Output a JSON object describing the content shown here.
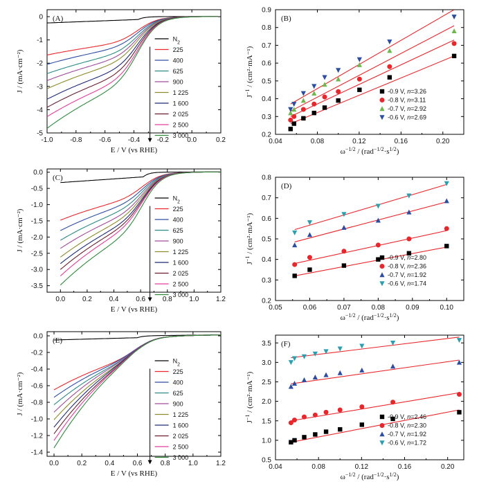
{
  "chart_data": [
    {
      "panel": "(A)",
      "type": "line",
      "xlabel": "E / V (vs RHE)",
      "ylabel": "J / (mA·cm⁻²)",
      "xlim": [
        -1.0,
        0.2
      ],
      "ylim": [
        -5,
        0.3
      ],
      "xticks": [
        -1.0,
        -0.8,
        -0.6,
        -0.4,
        -0.2,
        0.0,
        0.2
      ],
      "xtick_labels": [
        "-1.0",
        "-0.8",
        "-0.6",
        "-0.4",
        "-0.2",
        "0.0",
        "0.2"
      ],
      "yticks": [
        0,
        -1,
        -2,
        -3,
        -4,
        -5
      ],
      "ytick_labels": [
        "0",
        "-1",
        "-2",
        "-3",
        "-4",
        "-5"
      ],
      "onset": -0.37,
      "curve_end": 0.18,
      "legend": {
        "placement": "right",
        "arrow": "down"
      },
      "series": [
        {
          "name": "N₂",
          "color": "#000000",
          "n2": true,
          "start": -0.27
        },
        {
          "name": "225",
          "color": "#e8262b",
          "start": -1.65,
          "plateau": -1.15
        },
        {
          "name": "400",
          "color": "#2c4ea2",
          "start": -2.05,
          "plateau": -1.35
        },
        {
          "name": "625",
          "color": "#2a8a84",
          "start": -2.45,
          "plateau": -1.6
        },
        {
          "name": "900",
          "color": "#a04a9c",
          "start": -2.75,
          "plateau": -1.8
        },
        {
          "name": "1 225",
          "color": "#8c8c2a",
          "start": -3.1,
          "plateau": -2.0
        },
        {
          "name": "1 600",
          "color": "#1e2b78",
          "start": -3.55,
          "plateau": -2.3
        },
        {
          "name": "2 025",
          "color": "#6a1d2e",
          "start": -3.9,
          "plateau": -2.55
        },
        {
          "name": "2 500",
          "color": "#e23c9a",
          "start": -4.3,
          "plateau": -2.8
        },
        {
          "name": "3 000",
          "color": "#2e8b3a",
          "start": -4.8,
          "plateau": -3.0
        }
      ]
    },
    {
      "panel": "(B)",
      "type": "scatter",
      "xlabel": "ω^−1/2 / (rad^−1/2·s^1/2)",
      "ylabel": "J^−1 / (cm²·mA⁻¹)",
      "xlim": [
        0.04,
        0.22
      ],
      "ylim": [
        0.2,
        0.9
      ],
      "xticks": [
        0.04,
        0.08,
        0.12,
        0.16,
        0.2
      ],
      "xtick_labels": [
        "0.04",
        "0.08",
        "0.12",
        "0.16",
        "0.20"
      ],
      "yticks": [
        0.2,
        0.3,
        0.4,
        0.5,
        0.6,
        0.7,
        0.8,
        0.9
      ],
      "ytick_labels": [
        "0.2",
        "0.3",
        "0.4",
        "0.5",
        "0.6",
        "0.7",
        "0.8",
        "0.9"
      ],
      "fit_color": "#e8262b",
      "legend": {
        "placement": "bottom-right"
      },
      "x": [
        0.0544,
        0.0577,
        0.0667,
        0.0769,
        0.087,
        0.1,
        0.1203,
        0.1491,
        0.2108
      ],
      "series": [
        {
          "name": "-0.9 V, n=3.26",
          "marker": "square",
          "color": "#000000",
          "values": [
            0.23,
            0.26,
            0.29,
            0.32,
            0.35,
            0.39,
            0.45,
            0.52,
            0.64
          ],
          "fit": [
            0.0544,
            0.26,
            0.2108,
            0.64
          ]
        },
        {
          "name": "-0.8 V, n=3.11",
          "marker": "circle",
          "color": "#e8262b",
          "values": [
            0.28,
            0.3,
            0.34,
            0.37,
            0.41,
            0.44,
            0.51,
            0.58,
            0.71
          ],
          "fit": [
            0.0544,
            0.3,
            0.2108,
            0.73
          ]
        },
        {
          "name": "-0.7 V, n=2.92",
          "marker": "triangle-up",
          "color": "#6fb84f",
          "values": [
            0.32,
            0.34,
            0.39,
            0.43,
            0.48,
            0.51,
            0.59,
            0.67,
            0.78
          ],
          "fit": [
            0.0544,
            0.33,
            0.2108,
            0.81
          ]
        },
        {
          "name": "-0.6 V, n=2.69",
          "marker": "triangle-down",
          "color": "#2c4ea2",
          "values": [
            0.34,
            0.37,
            0.43,
            0.47,
            0.52,
            0.56,
            0.62,
            0.72,
            0.86
          ],
          "fit": [
            0.0544,
            0.37,
            0.2108,
            0.9
          ]
        }
      ]
    },
    {
      "panel": "(C)",
      "type": "line",
      "xlabel": "E / V (vs RHE)",
      "ylabel": "J / (mA·cm⁻²)",
      "xlim": [
        -0.1,
        1.2
      ],
      "ylim": [
        -3.7,
        0.1
      ],
      "xticks": [
        0.0,
        0.2,
        0.4,
        0.6,
        0.8,
        1.0,
        1.2
      ],
      "xtick_labels": [
        "0.0",
        "0.2",
        "0.4",
        "0.6",
        "0.8",
        "1.0",
        "1.2"
      ],
      "yticks": [
        0.0,
        -0.5,
        -1.0,
        -1.5,
        -2.0,
        -2.5,
        -3.0,
        -3.5
      ],
      "ytick_labels": [
        "0.0",
        "-0.5",
        "-1.0",
        "-1.5",
        "-2.0",
        "-2.5",
        "-3.0",
        "-3.5"
      ],
      "onset": 0.62,
      "curve_start": 0.0,
      "curve_end": 1.2,
      "legend": {
        "placement": "right",
        "arrow": "down"
      },
      "series": [
        {
          "name": "N₂",
          "color": "#000000",
          "n2": true,
          "start": -0.32
        },
        {
          "name": "225",
          "color": "#e8262b",
          "start": -1.48,
          "plateau": -0.85
        },
        {
          "name": "400",
          "color": "#2c4ea2",
          "start": -1.8,
          "plateau": -1.0
        },
        {
          "name": "625",
          "color": "#2a8a84",
          "start": -2.1,
          "plateau": -1.15
        },
        {
          "name": "900",
          "color": "#a04a9c",
          "start": -2.35,
          "plateau": -1.3
        },
        {
          "name": "1 225",
          "color": "#8c8c2a",
          "start": -2.62,
          "plateau": -1.42
        },
        {
          "name": "1 600",
          "color": "#1e2b78",
          "start": -2.82,
          "plateau": -1.55
        },
        {
          "name": "2 025",
          "color": "#6a1d2e",
          "start": -3.0,
          "plateau": -1.65
        },
        {
          "name": "2 500",
          "color": "#e23c9a",
          "start": -3.2,
          "plateau": -1.75
        },
        {
          "name": "3 000",
          "color": "#2e8b3a",
          "start": -3.48,
          "plateau": -1.95
        }
      ]
    },
    {
      "panel": "(D)",
      "type": "scatter",
      "xlabel": "ω^−1/2 / (rad^−1/2·s^1/2)",
      "ylabel": "J^−1 / (cm²·mA⁻¹)",
      "xlim": [
        0.05,
        0.105
      ],
      "ylim": [
        0.2,
        0.8
      ],
      "xticks": [
        0.05,
        0.06,
        0.07,
        0.08,
        0.09,
        0.1
      ],
      "xtick_labels": [
        "0.05",
        "0.06",
        "0.07",
        "0.08",
        "0.09",
        "0.10"
      ],
      "yticks": [
        0.2,
        0.3,
        0.4,
        0.5,
        0.6,
        0.7,
        0.8
      ],
      "ytick_labels": [
        "0.2",
        "0.3",
        "0.4",
        "0.5",
        "0.6",
        "0.7",
        "0.8"
      ],
      "fit_color": "#e8262b",
      "legend": {
        "placement": "bottom-right"
      },
      "x": [
        0.0556,
        0.06,
        0.07,
        0.08,
        0.089,
        0.1
      ],
      "series": [
        {
          "name": "-0.9 V, n=2.80",
          "marker": "square",
          "color": "#000000",
          "values": [
            0.32,
            0.35,
            0.37,
            0.4,
            0.43,
            0.465
          ],
          "fit": [
            0.0556,
            0.32,
            0.1,
            0.46
          ]
        },
        {
          "name": "-0.8 V, n=2.36",
          "marker": "circle",
          "color": "#e8262b",
          "values": [
            0.375,
            0.41,
            0.44,
            0.47,
            0.5,
            0.55
          ],
          "fit": [
            0.0556,
            0.38,
            0.1,
            0.54
          ]
        },
        {
          "name": "-0.7 V, n=1.92",
          "marker": "triangle-up",
          "color": "#2c4ea2",
          "values": [
            0.47,
            0.52,
            0.555,
            0.59,
            0.63,
            0.685
          ],
          "fit": [
            0.0556,
            0.485,
            0.1,
            0.68
          ]
        },
        {
          "name": "-0.6 V, n=1.74",
          "marker": "triangle-down",
          "color": "#2a9fb0",
          "values": [
            0.53,
            0.58,
            0.62,
            0.66,
            0.71,
            0.77
          ],
          "fit": [
            0.0556,
            0.545,
            0.1,
            0.765
          ]
        }
      ]
    },
    {
      "panel": "(E)",
      "type": "line",
      "xlabel": "E / V (vs RHE)",
      "ylabel": "J / (mA·cm⁻²)",
      "xlim": [
        -0.05,
        1.2
      ],
      "ylim": [
        -1.45,
        0.05
      ],
      "xticks": [
        0.0,
        0.2,
        0.4,
        0.6,
        0.8,
        1.0,
        1.2
      ],
      "xtick_labels": [
        "0.0",
        "0.2",
        "0.4",
        "0.6",
        "0.8",
        "1.0",
        "1.2"
      ],
      "yticks": [
        0.0,
        -0.2,
        -0.4,
        -0.6,
        -0.8,
        -1.0,
        -1.2,
        -1.4
      ],
      "ytick_labels": [
        "0.0",
        "-0.2",
        "-0.4",
        "-0.6",
        "-0.8",
        "-1.0",
        "-1.2",
        "-1.4"
      ],
      "onset": 0.6,
      "curve_start": 0.0,
      "curve_end": 1.2,
      "legend": {
        "placement": "right",
        "arrow": "down"
      },
      "series": [
        {
          "name": "N₂",
          "color": "#000000",
          "n2": true,
          "start": -0.05
        },
        {
          "name": "225",
          "color": "#e8262b",
          "start": -0.65,
          "plateau": -0.3
        },
        {
          "name": "400",
          "color": "#2c4ea2",
          "start": -0.74,
          "plateau": -0.3
        },
        {
          "name": "625",
          "color": "#2a8a84",
          "start": -0.83,
          "plateau": -0.31
        },
        {
          "name": "900",
          "color": "#a04a9c",
          "start": -0.92,
          "plateau": -0.31
        },
        {
          "name": "1 225",
          "color": "#8c8c2a",
          "start": -1.01,
          "plateau": -0.32
        },
        {
          "name": "1 600",
          "color": "#1e2b78",
          "start": -1.1,
          "plateau": -0.32
        },
        {
          "name": "2 025",
          "color": "#6a1d2e",
          "start": -1.18,
          "plateau": -0.33
        },
        {
          "name": "2 500",
          "color": "#e23c9a",
          "start": -1.26,
          "plateau": -0.33
        },
        {
          "name": "3 000",
          "color": "#2e8b3a",
          "start": -1.35,
          "plateau": -0.34
        }
      ]
    },
    {
      "panel": "(F)",
      "type": "scatter",
      "xlabel": "ω^−1/2 / (rad^−1/2·s^1/2)",
      "ylabel": "J^−1 / (cm²·mA⁻¹)",
      "xlim": [
        0.04,
        0.215
      ],
      "ylim": [
        0.5,
        3.7
      ],
      "xticks": [
        0.04,
        0.08,
        0.12,
        0.16,
        0.2
      ],
      "xtick_labels": [
        "0.04",
        "0.08",
        "0.12",
        "0.16",
        "0.20"
      ],
      "yticks": [
        0.5,
        1.0,
        1.5,
        2.0,
        2.5,
        3.0,
        3.5
      ],
      "ytick_labels": [
        "0.5",
        "1.0",
        "1.5",
        "2.0",
        "2.5",
        "3.0",
        "3.5"
      ],
      "fit_color": "#e8262b",
      "legend": {
        "placement": "bottom-right"
      },
      "x": [
        0.0544,
        0.0577,
        0.0667,
        0.0769,
        0.087,
        0.1,
        0.1203,
        0.1491,
        0.2108
      ],
      "series": [
        {
          "name": "-0.9 V, n=2.46",
          "marker": "square",
          "color": "#000000",
          "values": [
            0.95,
            1.0,
            1.08,
            1.15,
            1.22,
            1.28,
            1.4,
            1.55,
            1.72
          ],
          "fit": [
            0.0544,
            0.95,
            0.2108,
            1.78
          ]
        },
        {
          "name": "-0.8 V, n=2.30",
          "marker": "circle",
          "color": "#e8262b",
          "values": [
            1.45,
            1.52,
            1.6,
            1.65,
            1.72,
            1.78,
            1.86,
            1.98,
            2.18
          ],
          "fit": [
            0.0544,
            1.5,
            0.2108,
            2.22
          ]
        },
        {
          "name": "-0.7 V, n=1.92",
          "marker": "triangle-up",
          "color": "#2c4ea2",
          "values": [
            2.38,
            2.46,
            2.55,
            2.62,
            2.68,
            2.73,
            2.8,
            2.9,
            3.0
          ],
          "fit": [
            0.0544,
            2.45,
            0.2108,
            3.06
          ]
        },
        {
          "name": "-0.6 V, n=1.72",
          "marker": "triangle-down",
          "color": "#2a9fb0",
          "values": [
            3.0,
            3.1,
            3.15,
            3.22,
            3.28,
            3.35,
            3.42,
            3.5,
            3.57
          ],
          "fit": [
            0.0544,
            3.12,
            0.2108,
            3.65
          ]
        }
      ]
    }
  ]
}
